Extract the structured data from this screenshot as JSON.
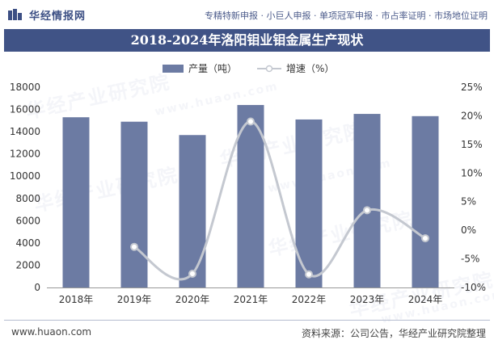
{
  "header": {
    "brand": "华经情报网",
    "links": "专精特新申报 · 小巨人申报 · 单项冠军申报 · 市占率证明 · 市场地位证明"
  },
  "title": "2018-2024年洛阳钼业钼金属生产现状",
  "legend": {
    "bar": "产量（吨）",
    "line": "增速（%）"
  },
  "watermark": "华经产业研究院",
  "watermark_url": "www.huaon.com",
  "footer": {
    "website": "www.huaon.com",
    "source": "资料来源：公司公告，华经产业研究院整理"
  },
  "colors": {
    "bar": "#6c7ba3",
    "line": "#c4c8d0",
    "title_band": "#405386"
  },
  "chart_data": {
    "type": "bar",
    "categories": [
      "2018年",
      "2019年",
      "2020年",
      "2021年",
      "2022年",
      "2023年",
      "2024年"
    ],
    "series": [
      {
        "name": "产量（吨）",
        "type": "bar",
        "axis": "left",
        "values": [
          15300,
          14900,
          13700,
          16400,
          15100,
          15600,
          15400
        ]
      },
      {
        "name": "增速（%）",
        "type": "line",
        "axis": "right",
        "values": [
          null,
          -2.9,
          -7.6,
          19.0,
          -7.7,
          3.5,
          -1.4
        ]
      }
    ],
    "y_left": {
      "min": 0,
      "max": 18000,
      "ticks": [
        "0",
        "2000",
        "4000",
        "6000",
        "8000",
        "10000",
        "12000",
        "14000",
        "16000",
        "18000"
      ]
    },
    "y_right": {
      "min": -10,
      "max": 25,
      "ticks": [
        "-10%",
        "-5%",
        "0%",
        "5%",
        "10%",
        "15%",
        "20%",
        "25%"
      ]
    },
    "grid": false,
    "legend_position": "top"
  }
}
